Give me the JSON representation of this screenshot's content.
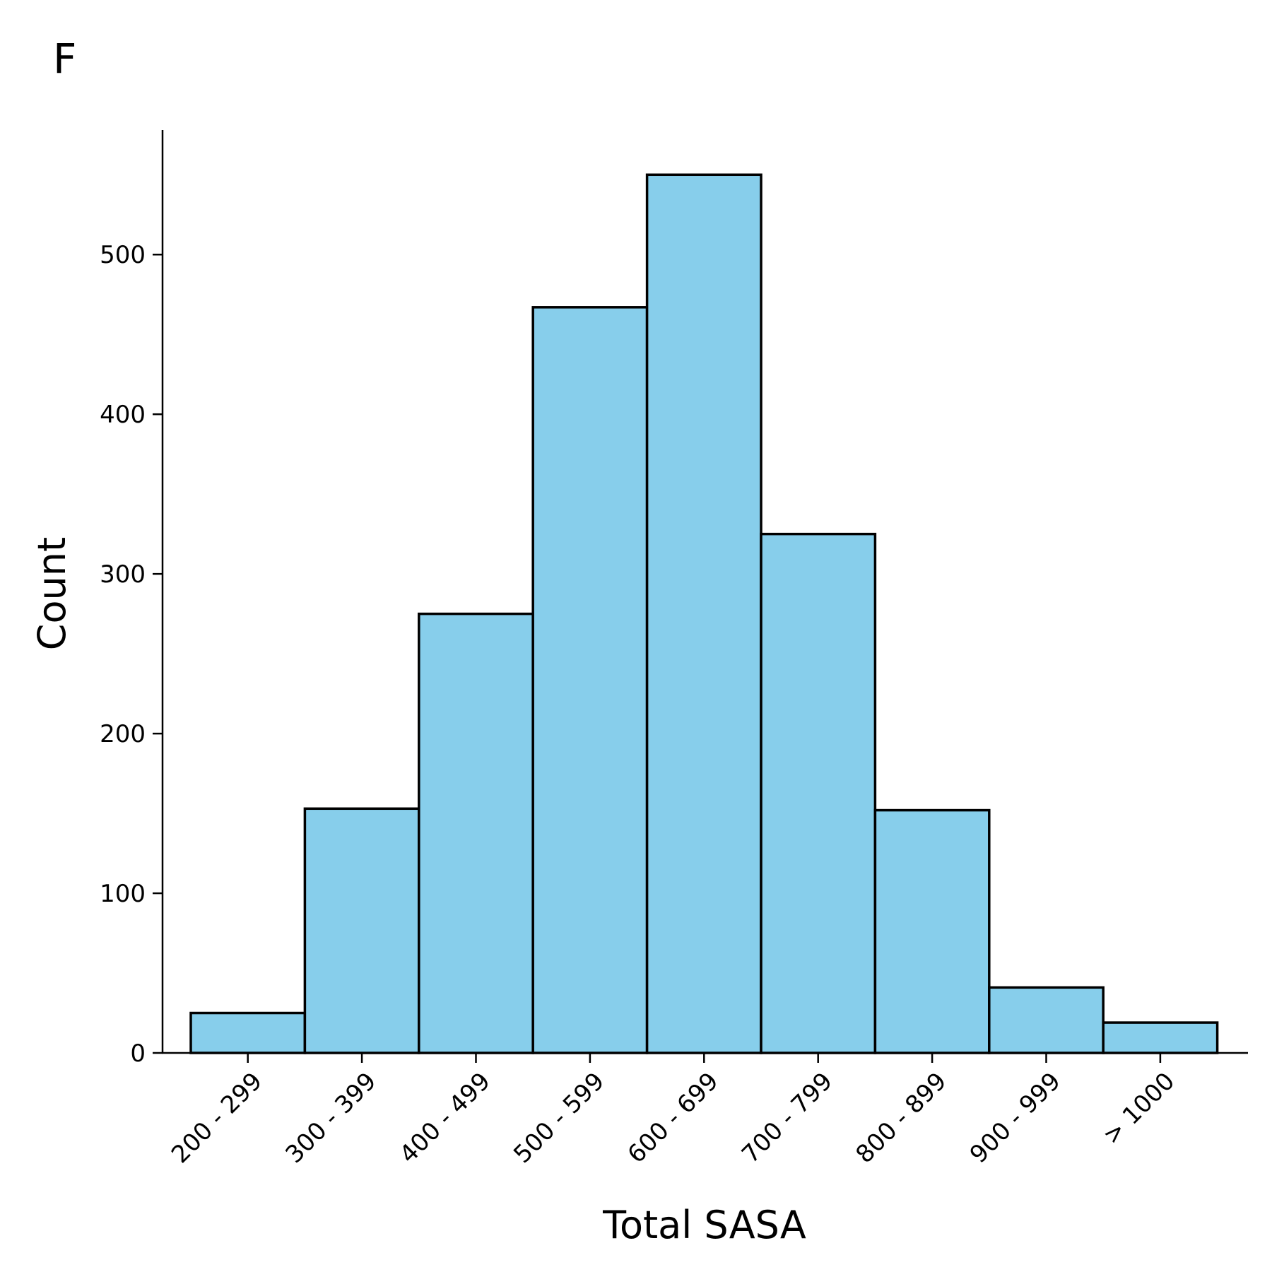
{
  "panel_label": "F",
  "chart_data": {
    "type": "bar",
    "title": "",
    "xlabel": "Total SASA",
    "ylabel": "Count",
    "categories": [
      "200 - 299",
      "300 - 399",
      "400 - 499",
      "500 - 599",
      "600 - 699",
      "700 - 799",
      "800 - 899",
      "900 - 999",
      "> 1000"
    ],
    "values": [
      25,
      153,
      275,
      467,
      550,
      325,
      152,
      41,
      19
    ],
    "ylim": [
      0,
      578
    ],
    "yticks": [
      0,
      100,
      200,
      300,
      400,
      500
    ],
    "grid": false,
    "bar_color": "#87CEEB",
    "edge_color": "#000000"
  }
}
